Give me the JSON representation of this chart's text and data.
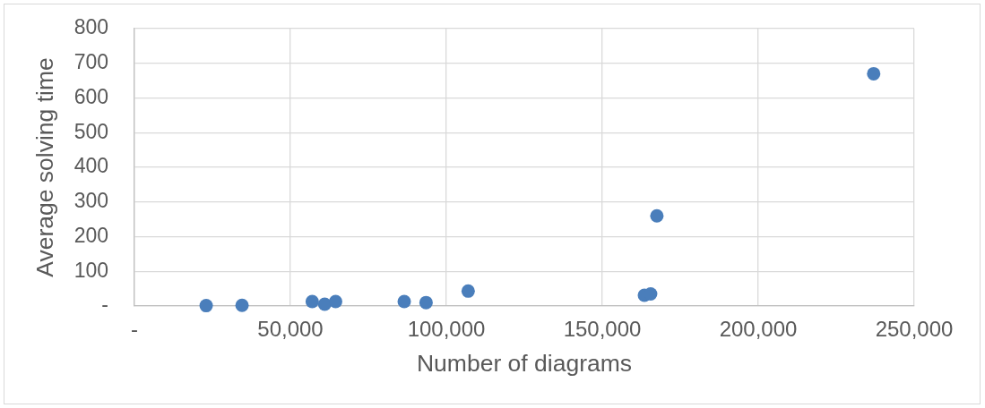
{
  "chart_data": {
    "type": "scatter",
    "xlabel": "Number of diagrams",
    "ylabel": "Average solving time",
    "x": [
      23000,
      34500,
      57000,
      61000,
      64500,
      86500,
      93500,
      107000,
      163500,
      165500,
      167500,
      237000
    ],
    "values": [
      1,
      2,
      13,
      5,
      13,
      13,
      10,
      43,
      31,
      35,
      260,
      670
    ],
    "color": "#4a7ebb",
    "marker": "circle",
    "grid": true,
    "xlim": [
      0,
      250000
    ],
    "xticks": [
      {
        "value": 0,
        "label": "-"
      },
      {
        "value": 50000,
        "label": "50,000"
      },
      {
        "value": 100000,
        "label": "100,000"
      },
      {
        "value": 150000,
        "label": "150,000"
      },
      {
        "value": 200000,
        "label": "200,000"
      },
      {
        "value": 250000,
        "label": "250,000"
      }
    ],
    "ylim": [
      0,
      800
    ],
    "yticks": [
      {
        "value": 0,
        "label": "-"
      },
      100,
      200,
      300,
      400,
      500,
      600,
      700,
      800
    ]
  }
}
